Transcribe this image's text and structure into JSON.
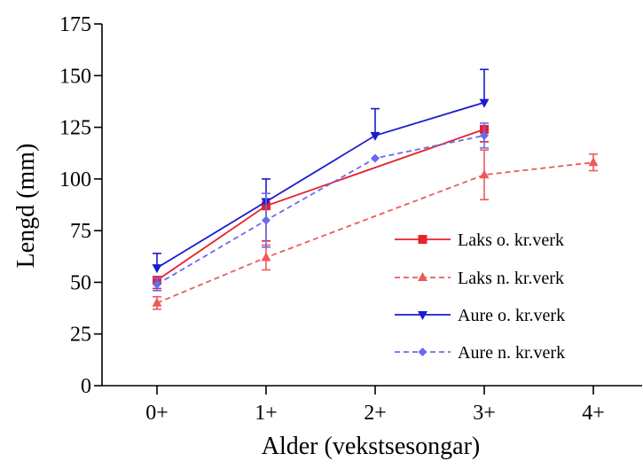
{
  "chart_data": {
    "type": "line",
    "xlabel": "Alder (vekstsesongar)",
    "ylabel": "Lengd (mm)",
    "categories": [
      "0+",
      "1+",
      "2+",
      "3+",
      "4+"
    ],
    "yticks": [
      0,
      25,
      50,
      75,
      100,
      125,
      150,
      175
    ],
    "ylim": [
      0,
      175
    ],
    "grid": false,
    "legend": "right",
    "series": [
      {
        "name": "Laks o. kr.verk",
        "color": "#e8222a",
        "dash": "solid",
        "marker": "square",
        "error_direction": "down",
        "values": [
          51,
          87,
          null,
          124,
          null
        ],
        "errors": [
          4,
          17,
          null,
          6,
          null
        ]
      },
      {
        "name": "Laks n. kr.verk",
        "color": "#ee5a5a",
        "dash": "dashed",
        "marker": "triangle-up",
        "error_direction": "both",
        "values": [
          40,
          62,
          null,
          102,
          108
        ],
        "errors": [
          3,
          6,
          null,
          12,
          4
        ]
      },
      {
        "name": "Aure o. kr.verk",
        "color": "#1a1ad0",
        "dash": "solid",
        "marker": "triangle-down",
        "error_direction": "up",
        "values": [
          57,
          89,
          121,
          137,
          null
        ],
        "errors": [
          7,
          11,
          13,
          16,
          null
        ]
      },
      {
        "name": "Aure n. kr.verk",
        "color": "#6a6aee",
        "dash": "dashed",
        "marker": "diamond",
        "error_direction": "both",
        "values": [
          49,
          80,
          110,
          121,
          null
        ],
        "errors": [
          3,
          13,
          null,
          6,
          null
        ]
      }
    ]
  }
}
